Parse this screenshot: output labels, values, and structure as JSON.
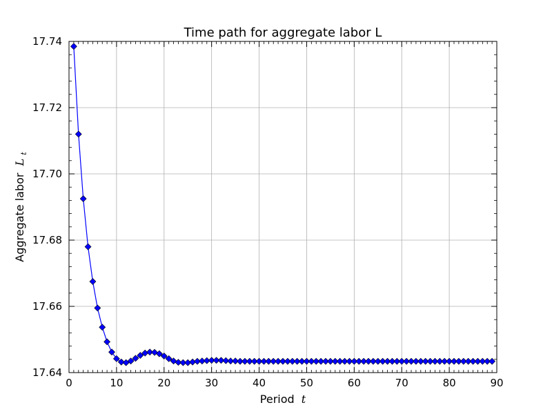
{
  "chart_data": {
    "type": "line",
    "title": "Time path for aggregate labor L",
    "xlabel": "Period",
    "xlabel_math": "t",
    "ylabel": "Aggregate labor",
    "ylabel_math": "L",
    "ylabel_math_sub": "t",
    "xlim": [
      0,
      90
    ],
    "ylim": [
      17.64,
      17.74
    ],
    "x_ticks": [
      0,
      10,
      20,
      30,
      40,
      50,
      60,
      70,
      80,
      90
    ],
    "x_tick_labels": [
      "0",
      "10",
      "20",
      "30",
      "40",
      "50",
      "60",
      "70",
      "80",
      "90"
    ],
    "y_ticks": [
      17.64,
      17.66,
      17.68,
      17.7,
      17.72,
      17.74
    ],
    "y_tick_labels": [
      "17.64",
      "17.66",
      "17.68",
      "17.70",
      "17.72",
      "17.74"
    ],
    "grid": true,
    "series": [
      {
        "color": "#0000ff",
        "marker": "diamond",
        "x": [
          1,
          2,
          3,
          4,
          5,
          6,
          7,
          8,
          9,
          10,
          11,
          12,
          13,
          14,
          15,
          16,
          17,
          18,
          19,
          20,
          21,
          22,
          23,
          24,
          25,
          26,
          27,
          28,
          29,
          30,
          31,
          32,
          33,
          34,
          35,
          36,
          37,
          38,
          39,
          40,
          41,
          42,
          43,
          44,
          45,
          46,
          47,
          48,
          49,
          50,
          51,
          52,
          53,
          54,
          55,
          56,
          57,
          58,
          59,
          60,
          61,
          62,
          63,
          64,
          65,
          66,
          67,
          68,
          69,
          70,
          71,
          72,
          73,
          74,
          75,
          76,
          77,
          78,
          79,
          80,
          81,
          82,
          83,
          84,
          85,
          86,
          87,
          88,
          89
        ],
        "y": [
          17.7385,
          17.712,
          17.6925,
          17.678,
          17.6675,
          17.6595,
          17.6537,
          17.6493,
          17.6462,
          17.6442,
          17.6432,
          17.643,
          17.6435,
          17.6443,
          17.6452,
          17.6459,
          17.6462,
          17.6461,
          17.6457,
          17.645,
          17.6442,
          17.6435,
          17.6431,
          17.643,
          17.643,
          17.6432,
          17.6434,
          17.6435,
          17.6436,
          17.6437,
          17.6437,
          17.6437,
          17.6436,
          17.6435,
          17.6435,
          17.6434,
          17.6434,
          17.6434,
          17.6434,
          17.6434,
          17.6434,
          17.6434,
          17.6434,
          17.6434,
          17.6434,
          17.6434,
          17.6434,
          17.6434,
          17.6434,
          17.6434,
          17.6434,
          17.6434,
          17.6434,
          17.6434,
          17.6434,
          17.6434,
          17.6434,
          17.6434,
          17.6434,
          17.6434,
          17.6434,
          17.6434,
          17.6434,
          17.6434,
          17.6434,
          17.6434,
          17.6434,
          17.6434,
          17.6434,
          17.6434,
          17.6434,
          17.6434,
          17.6434,
          17.6434,
          17.6434,
          17.6434,
          17.6434,
          17.6434,
          17.6434,
          17.6434,
          17.6434,
          17.6434,
          17.6434,
          17.6434,
          17.6434,
          17.6434,
          17.6434,
          17.6434,
          17.6434
        ]
      }
    ]
  }
}
